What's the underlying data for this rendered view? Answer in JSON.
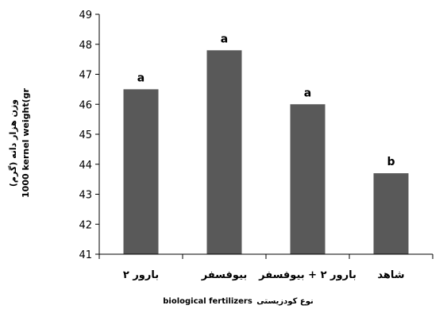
{
  "chart_data": {
    "type": "bar",
    "categories": [
      "بارور ۲",
      "بیوفسفر",
      "بارور ۲ + بیوفسفر",
      "شاهد"
    ],
    "values": [
      46.5,
      47.8,
      46.0,
      43.7
    ],
    "data_labels": [
      "a",
      "a",
      "a",
      "b"
    ],
    "ylabel_fa": "وزن هزار دانه (گرم)",
    "ylabel_en": "1000 kernel weight(gr",
    "xlabel_en": "biological fertilizers",
    "xlabel_fa": "نوع کودزیستی",
    "ylim": [
      41,
      49
    ],
    "yticks": [
      41,
      42,
      43,
      44,
      45,
      46,
      47,
      48,
      49
    ],
    "grid": false,
    "bar_color": "#595959"
  }
}
